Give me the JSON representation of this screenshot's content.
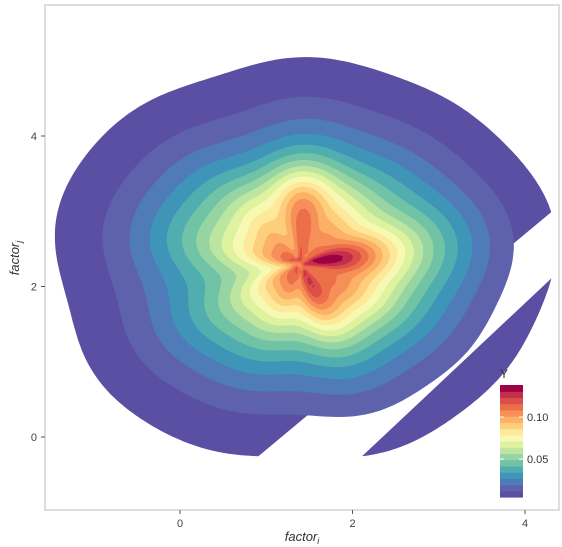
{
  "chart_data": {
    "type": "density-contour",
    "xlabel": "factor",
    "xlabel_subscript": "i",
    "ylabel": "factor",
    "ylabel_subscript": "j",
    "xlim": [
      -1.6,
      4.3
    ],
    "ylim": [
      -0.9,
      5.6
    ],
    "x_ticks": [
      0,
      2,
      4
    ],
    "y_ticks": [
      0,
      2,
      4
    ],
    "x_tick_labels": [
      "0",
      "2",
      "4"
    ],
    "y_tick_labels": [
      "0",
      "2",
      "4"
    ],
    "grid": false,
    "legend": {
      "title": "Y",
      "placement": "bottom-right",
      "range": [
        0.005,
        0.138
      ],
      "ticks": [
        0.05,
        0.1
      ],
      "tick_labels": [
        "0.05",
        "0.10"
      ]
    },
    "level_colors": [
      "#5a4fa2",
      "#5e62ad",
      "#4f7bb9",
      "#3f95b8",
      "#50aeb0",
      "#70c3a5",
      "#96d4a4",
      "#bce5a0",
      "#dff29f",
      "#f6f9b2",
      "#fee99a",
      "#fdcf7d",
      "#fcb166",
      "#f79058",
      "#ec6f4a",
      "#dc4e49",
      "#c22e4c",
      "#9e0142"
    ],
    "peaks": [
      {
        "x": 1.75,
        "y": 2.1,
        "value": 0.138
      },
      {
        "x": 1.4,
        "y": 3.1,
        "value": 0.12
      }
    ]
  }
}
